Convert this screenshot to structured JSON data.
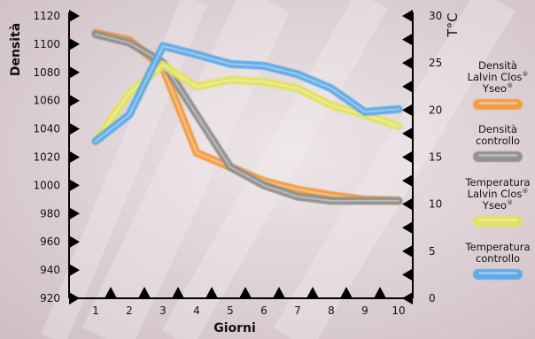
{
  "chart_data": {
    "type": "line",
    "x": [
      1,
      2,
      3,
      4,
      5,
      6,
      7,
      8,
      9,
      10
    ],
    "xlabel": "Giorni",
    "ylabel_left": "Densità",
    "ylabel_right": "T°C",
    "ylim_left": [
      920,
      1120
    ],
    "ylim_right": [
      0,
      30
    ],
    "yticks_left": [
      920,
      940,
      960,
      980,
      1000,
      1020,
      1040,
      1060,
      1080,
      1100,
      1120
    ],
    "yticks_right": [
      0,
      5,
      10,
      15,
      20,
      25,
      30
    ],
    "xticks": [
      1,
      2,
      3,
      4,
      5,
      6,
      7,
      8,
      9,
      10
    ],
    "grid": false,
    "legend_position": "right",
    "series": [
      {
        "name": "Densità Lalvin Clos® Yseo®",
        "legend_lines": [
          "Densità",
          "Lalvin Clos®",
          "Yseo®"
        ],
        "axis": "left",
        "color": "#f39a3d",
        "values": [
          1108,
          1103,
          1083,
          1023,
          1013,
          1003,
          997,
          993,
          990,
          989
        ]
      },
      {
        "name": "Densità controllo",
        "legend_lines": [
          "Densità",
          "controllo"
        ],
        "axis": "left",
        "color": "#8e8e8e",
        "values": [
          1107,
          1101,
          1087,
          1050,
          1013,
          1000,
          992,
          989,
          989,
          989
        ]
      },
      {
        "name": "Temperatura Lalvin Clos® Yseo®",
        "legend_lines": [
          "Temperatura",
          "Lalvin Clos®",
          "Yseo®"
        ],
        "axis": "right",
        "color": "#e3e35a",
        "values": [
          16.7,
          21.8,
          24.8,
          22.5,
          23.2,
          23.0,
          22.3,
          20.5,
          19.5,
          18.3
        ]
      },
      {
        "name": "Temperatura controllo",
        "legend_lines": [
          "Temperatura",
          "controllo"
        ],
        "axis": "right",
        "color": "#5aa9e8",
        "values": [
          16.7,
          19.5,
          26.8,
          25.9,
          24.9,
          24.7,
          23.8,
          22.3,
          19.8,
          20.1
        ]
      }
    ]
  }
}
